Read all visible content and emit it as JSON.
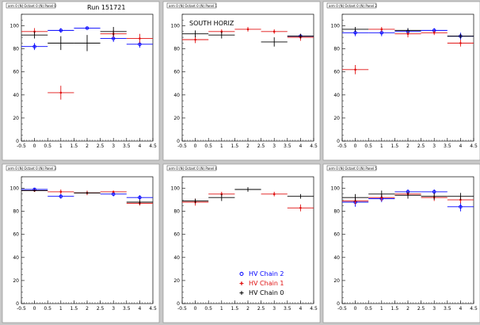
{
  "header": {
    "run_label": "Run 151721"
  },
  "legend": {
    "entries": [
      {
        "label": "HV Chain 2",
        "color": "#0000ff",
        "marker": "circle"
      },
      {
        "label": "HV Chain 1",
        "color": "#e01010",
        "marker": "star"
      },
      {
        "label": "HV Chain 0",
        "color": "#000000",
        "marker": "cross"
      }
    ]
  },
  "chart_data": [
    {
      "type": "scatter",
      "title": "arm 0 (N) Octant 0 (N) Panel 0",
      "xlim": [
        -0.5,
        4.5
      ],
      "ylim": [
        0,
        110
      ],
      "xticks": [
        "-0.5",
        "0",
        "0.5",
        "1",
        "1.5",
        "2",
        "2.5",
        "3",
        "3.5",
        "4",
        "4.5"
      ],
      "yticks": [
        "0",
        "20",
        "40",
        "60",
        "80",
        "100"
      ],
      "series": [
        {
          "name": "HV Chain 2",
          "color": "#0000ff",
          "points": [
            {
              "x": 0,
              "y": 82,
              "err": 3
            },
            {
              "x": 1,
              "y": 96,
              "err": 2
            },
            {
              "x": 2,
              "y": 98,
              "err": 1
            },
            {
              "x": 3,
              "y": 89,
              "err": 3
            },
            {
              "x": 4,
              "y": 84,
              "err": 3
            }
          ]
        },
        {
          "name": "HV Chain 1",
          "color": "#e01010",
          "points": [
            {
              "x": 0,
              "y": 95,
              "err": 3
            },
            {
              "x": 1,
              "y": 42,
              "err": 6
            },
            {
              "x": 3,
              "y": 93,
              "err": 3
            },
            {
              "x": 4,
              "y": 89,
              "err": 4
            }
          ]
        },
        {
          "name": "HV Chain 0",
          "color": "#000000",
          "points": [
            {
              "x": 0,
              "y": 92,
              "err": 3
            },
            {
              "x": 1,
              "y": 85,
              "err": 6
            },
            {
              "x": 2,
              "y": 85,
              "err": 7
            },
            {
              "x": 3,
              "y": 95,
              "err": 4
            }
          ]
        }
      ]
    },
    {
      "type": "scatter",
      "title": "arm 0 (N) Octant 0 (N) Panel 1",
      "subtitle": "SOUTH HORIZ",
      "xlim": [
        -0.5,
        4.5
      ],
      "ylim": [
        0,
        110
      ],
      "xticks": [
        "-0.5",
        "0",
        "0.5",
        "1",
        "1.5",
        "2",
        "2.5",
        "3",
        "3.5",
        "4",
        "4.5"
      ],
      "yticks": [
        "0",
        "20",
        "40",
        "60",
        "80",
        "100"
      ],
      "series": [
        {
          "name": "HV Chain 2",
          "color": "#0000ff",
          "points": [
            {
              "x": 4,
              "y": 91,
              "err": 2
            }
          ]
        },
        {
          "name": "HV Chain 1",
          "color": "#e01010",
          "points": [
            {
              "x": 0,
              "y": 88,
              "err": 3
            },
            {
              "x": 1,
              "y": 95,
              "err": 2
            },
            {
              "x": 2,
              "y": 97,
              "err": 2
            },
            {
              "x": 3,
              "y": 95,
              "err": 2
            },
            {
              "x": 4,
              "y": 90,
              "err": 3
            }
          ]
        },
        {
          "name": "HV Chain 0",
          "color": "#000000",
          "points": [
            {
              "x": 0,
              "y": 93,
              "err": 3
            },
            {
              "x": 1,
              "y": 92,
              "err": 3
            },
            {
              "x": 3,
              "y": 86,
              "err": 4
            },
            {
              "x": 4,
              "y": 91,
              "err": 2
            }
          ]
        }
      ]
    },
    {
      "type": "scatter",
      "title": "arm 0 (N) Octant 0 (N) Panel 2",
      "xlim": [
        -0.5,
        4.5
      ],
      "ylim": [
        0,
        110
      ],
      "xticks": [
        "-0.5",
        "0",
        "0.5",
        "1",
        "1.5",
        "2",
        "2.5",
        "3",
        "3.5",
        "4",
        "4.5"
      ],
      "yticks": [
        "0",
        "20",
        "40",
        "60",
        "80",
        "100"
      ],
      "series": [
        {
          "name": "HV Chain 2",
          "color": "#0000ff",
          "points": [
            {
              "x": 0,
              "y": 94,
              "err": 3
            },
            {
              "x": 1,
              "y": 94,
              "err": 3
            },
            {
              "x": 2,
              "y": 95,
              "err": 3
            },
            {
              "x": 3,
              "y": 96,
              "err": 2
            },
            {
              "x": 4,
              "y": 91,
              "err": 3
            }
          ]
        },
        {
          "name": "HV Chain 1",
          "color": "#e01010",
          "points": [
            {
              "x": 0,
              "y": 62,
              "err": 4
            },
            {
              "x": 1,
              "y": 97,
              "err": 2
            },
            {
              "x": 2,
              "y": 93,
              "err": 3
            },
            {
              "x": 3,
              "y": 94,
              "err": 2
            },
            {
              "x": 4,
              "y": 85,
              "err": 3
            }
          ]
        },
        {
          "name": "HV Chain 0",
          "color": "#000000",
          "points": [
            {
              "x": 0,
              "y": 97,
              "err": 2
            },
            {
              "x": 2,
              "y": 96,
              "err": 2
            },
            {
              "x": 4,
              "y": 91,
              "err": 2
            }
          ]
        }
      ]
    },
    {
      "type": "scatter",
      "title": "arm 0 (N) Octant 0 (N) Panel 3",
      "xlim": [
        -0.5,
        4.5
      ],
      "ylim": [
        0,
        110
      ],
      "xticks": [
        "-0.5",
        "0",
        "0.5",
        "1",
        "1.5",
        "2",
        "2.5",
        "3",
        "3.5",
        "4",
        "4.5"
      ],
      "yticks": [
        "0",
        "20",
        "40",
        "60",
        "80",
        "100"
      ],
      "series": [
        {
          "name": "HV Chain 2",
          "color": "#0000ff",
          "points": [
            {
              "x": 0,
              "y": 99,
              "err": 1
            },
            {
              "x": 1,
              "y": 93,
              "err": 2
            },
            {
              "x": 3,
              "y": 95,
              "err": 2
            },
            {
              "x": 4,
              "y": 92,
              "err": 2
            }
          ]
        },
        {
          "name": "HV Chain 1",
          "color": "#e01010",
          "points": [
            {
              "x": 0,
              "y": 98,
              "err": 1
            },
            {
              "x": 1,
              "y": 97,
              "err": 2
            },
            {
              "x": 2,
              "y": 96,
              "err": 2
            },
            {
              "x": 3,
              "y": 97,
              "err": 1
            },
            {
              "x": 4,
              "y": 87,
              "err": 2
            }
          ]
        },
        {
          "name": "HV Chain 0",
          "color": "#000000",
          "points": [
            {
              "x": 0,
              "y": 98,
              "err": 1
            },
            {
              "x": 2,
              "y": 96,
              "err": 1
            },
            {
              "x": 4,
              "y": 88,
              "err": 2
            }
          ]
        }
      ]
    },
    {
      "type": "scatter",
      "title": "arm 0 (N) Octant 0 (N) Panel 4",
      "xlim": [
        -0.5,
        4.5
      ],
      "ylim": [
        0,
        110
      ],
      "xticks": [
        "-0.5",
        "0",
        "0.5",
        "1",
        "1.5",
        "2",
        "2.5",
        "3",
        "3.5",
        "4",
        "4.5"
      ],
      "yticks": [
        "0",
        "20",
        "40",
        "60",
        "80",
        "100"
      ],
      "series": [
        {
          "name": "HV Chain 1",
          "color": "#e01010",
          "points": [
            {
              "x": 0,
              "y": 88,
              "err": 3
            },
            {
              "x": 1,
              "y": 95,
              "err": 2
            },
            {
              "x": 3,
              "y": 95,
              "err": 2
            },
            {
              "x": 4,
              "y": 83,
              "err": 3
            }
          ]
        },
        {
          "name": "HV Chain 0",
          "color": "#000000",
          "points": [
            {
              "x": 0,
              "y": 89,
              "err": 2
            },
            {
              "x": 1,
              "y": 92,
              "err": 3
            },
            {
              "x": 2,
              "y": 99,
              "err": 2
            },
            {
              "x": 4,
              "y": 93,
              "err": 2
            }
          ]
        }
      ]
    },
    {
      "type": "scatter",
      "title": "arm 0 (N) Octant 0 (N) Panel 5",
      "xlim": [
        -0.5,
        4.5
      ],
      "ylim": [
        0,
        110
      ],
      "xticks": [
        "-0.5",
        "0",
        "0.5",
        "1",
        "1.5",
        "2",
        "2.5",
        "3",
        "3.5",
        "4",
        "4.5"
      ],
      "yticks": [
        "0",
        "20",
        "40",
        "60",
        "80",
        "100"
      ],
      "series": [
        {
          "name": "HV Chain 2",
          "color": "#0000ff",
          "points": [
            {
              "x": 0,
              "y": 88,
              "err": 4
            },
            {
              "x": 1,
              "y": 91,
              "err": 3
            },
            {
              "x": 2,
              "y": 97,
              "err": 2
            },
            {
              "x": 3,
              "y": 97,
              "err": 2
            },
            {
              "x": 4,
              "y": 84,
              "err": 4
            }
          ]
        },
        {
          "name": "HV Chain 1",
          "color": "#e01010",
          "points": [
            {
              "x": 0,
              "y": 89,
              "err": 3
            },
            {
              "x": 1,
              "y": 92,
              "err": 3
            },
            {
              "x": 2,
              "y": 95,
              "err": 2
            },
            {
              "x": 3,
              "y": 92,
              "err": 3
            },
            {
              "x": 4,
              "y": 90,
              "err": 3
            }
          ]
        },
        {
          "name": "HV Chain 0",
          "color": "#000000",
          "points": [
            {
              "x": 0,
              "y": 92,
              "err": 3
            },
            {
              "x": 1,
              "y": 95,
              "err": 3
            },
            {
              "x": 2,
              "y": 94,
              "err": 3
            },
            {
              "x": 3,
              "y": 93,
              "err": 3
            },
            {
              "x": 4,
              "y": 93,
              "err": 3
            }
          ]
        }
      ]
    }
  ]
}
